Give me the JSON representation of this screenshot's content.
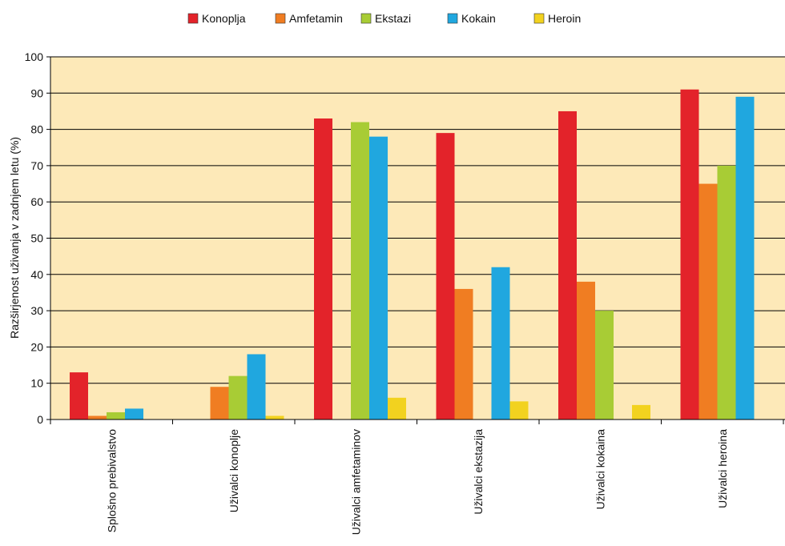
{
  "chart_data": {
    "type": "bar",
    "title": "",
    "xlabel": "",
    "ylabel": "Razširjenost uživanja v zadnjem letu (%)",
    "ylim": [
      0,
      100
    ],
    "yticks": [
      0,
      10,
      20,
      30,
      40,
      50,
      60,
      70,
      80,
      90,
      100
    ],
    "grid": true,
    "legend_position": "top",
    "plot_background": "#fde9b8",
    "categories": [
      "Splošno prebivalstvo",
      "Uživalci konoplje",
      "Uživalci amfetaminov",
      "Uživalci ekstazija",
      "Uživalci kokaina",
      "Uživalci heroina"
    ],
    "series": [
      {
        "name": "Konoplja",
        "color": "#e3232a",
        "values": [
          13,
          null,
          83,
          79,
          85,
          91
        ]
      },
      {
        "name": "Amfetamin",
        "color": "#f07d22",
        "values": [
          1,
          9,
          null,
          36,
          38,
          65
        ]
      },
      {
        "name": "Ekstazi",
        "color": "#a8cc35",
        "values": [
          2,
          12,
          82,
          null,
          30,
          70
        ]
      },
      {
        "name": "Kokain",
        "color": "#20a7df",
        "values": [
          3,
          18,
          78,
          42,
          null,
          89
        ]
      },
      {
        "name": "Heroin",
        "color": "#f2d21f",
        "values": [
          null,
          1,
          6,
          5,
          4,
          null
        ]
      }
    ]
  }
}
